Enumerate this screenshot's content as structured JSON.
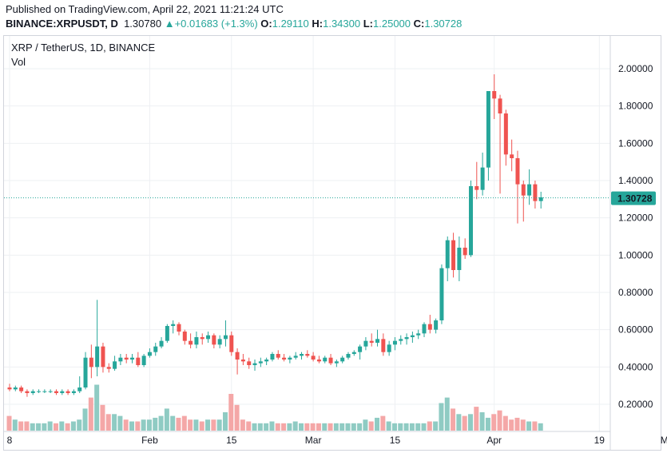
{
  "header": {
    "published": "Published on TradingView.com, April 22, 2021 11:21:24 UTC",
    "symbol": "BINANCE:XRPUSDT, D",
    "last": "1.30780",
    "arrow": "▲",
    "change": "+0.01683 (+1.3%)",
    "o_label": "O:",
    "o": "1.29110",
    "h_label": "H:",
    "h": "1.34300",
    "l_label": "L:",
    "l": "1.25000",
    "c_label": "C:",
    "c": "1.30728"
  },
  "legend": {
    "title": "XRP / TetherUS, 1D, BINANCE",
    "vol": "Vol"
  },
  "colors": {
    "up": "#26a69a",
    "down": "#ef5350",
    "vol_up": "#8fcbc3",
    "vol_down": "#f4a7a7",
    "grid": "#eef0f3",
    "axis": "#d1d4dc"
  },
  "chart_data": {
    "type": "candlestick",
    "title": "XRP / TetherUS, 1D, BINANCE",
    "last_price_label": "1.30728",
    "y_ticks": [
      "0.20000",
      "0.40000",
      "0.60000",
      "0.80000",
      "1.00000",
      "1.20000",
      "1.40000",
      "1.60000",
      "1.80000",
      "2.00000"
    ],
    "y_tick_values": [
      0.2,
      0.4,
      0.6,
      0.8,
      1.0,
      1.2,
      1.4,
      1.6,
      1.8,
      2.0
    ],
    "x_ticks": [
      {
        "label": "8",
        "index": 0
      },
      {
        "label": "Feb",
        "index": 24
      },
      {
        "label": "15",
        "index": 38
      },
      {
        "label": "Mar",
        "index": 52
      },
      {
        "label": "15",
        "index": 66
      },
      {
        "label": "Apr",
        "index": 83
      },
      {
        "label": "19",
        "index": 101
      },
      {
        "label": "May",
        "index": 113
      }
    ],
    "ylim": [
      0.11,
      2.14
    ],
    "candles": [
      [
        0.29,
        0.31,
        0.27,
        0.28
      ],
      [
        0.28,
        0.3,
        0.27,
        0.29
      ],
      [
        0.29,
        0.3,
        0.26,
        0.27
      ],
      [
        0.27,
        0.28,
        0.24,
        0.26
      ],
      [
        0.26,
        0.28,
        0.25,
        0.27
      ],
      [
        0.27,
        0.28,
        0.26,
        0.27
      ],
      [
        0.27,
        0.28,
        0.26,
        0.27
      ],
      [
        0.27,
        0.28,
        0.26,
        0.27
      ],
      [
        0.27,
        0.28,
        0.25,
        0.26
      ],
      [
        0.26,
        0.28,
        0.25,
        0.27
      ],
      [
        0.27,
        0.28,
        0.25,
        0.26
      ],
      [
        0.26,
        0.28,
        0.25,
        0.27
      ],
      [
        0.27,
        0.35,
        0.26,
        0.29
      ],
      [
        0.29,
        0.48,
        0.28,
        0.45
      ],
      [
        0.45,
        0.52,
        0.34,
        0.4
      ],
      [
        0.4,
        0.76,
        0.35,
        0.51
      ],
      [
        0.51,
        0.53,
        0.37,
        0.4
      ],
      [
        0.4,
        0.42,
        0.37,
        0.39
      ],
      [
        0.39,
        0.46,
        0.38,
        0.43
      ],
      [
        0.43,
        0.47,
        0.41,
        0.45
      ],
      [
        0.45,
        0.47,
        0.42,
        0.44
      ],
      [
        0.44,
        0.47,
        0.42,
        0.45
      ],
      [
        0.45,
        0.48,
        0.4,
        0.41
      ],
      [
        0.41,
        0.47,
        0.4,
        0.46
      ],
      [
        0.46,
        0.5,
        0.45,
        0.48
      ],
      [
        0.48,
        0.53,
        0.46,
        0.51
      ],
      [
        0.51,
        0.56,
        0.5,
        0.54
      ],
      [
        0.54,
        0.63,
        0.53,
        0.62
      ],
      [
        0.62,
        0.65,
        0.58,
        0.63
      ],
      [
        0.63,
        0.64,
        0.57,
        0.59
      ],
      [
        0.59,
        0.6,
        0.52,
        0.54
      ],
      [
        0.54,
        0.58,
        0.5,
        0.52
      ],
      [
        0.52,
        0.59,
        0.5,
        0.56
      ],
      [
        0.56,
        0.58,
        0.52,
        0.55
      ],
      [
        0.55,
        0.59,
        0.53,
        0.57
      ],
      [
        0.57,
        0.58,
        0.5,
        0.52
      ],
      [
        0.52,
        0.57,
        0.5,
        0.55
      ],
      [
        0.55,
        0.65,
        0.51,
        0.57
      ],
      [
        0.57,
        0.59,
        0.46,
        0.48
      ],
      [
        0.48,
        0.5,
        0.36,
        0.44
      ],
      [
        0.44,
        0.47,
        0.41,
        0.43
      ],
      [
        0.43,
        0.45,
        0.39,
        0.41
      ],
      [
        0.41,
        0.44,
        0.38,
        0.42
      ],
      [
        0.42,
        0.45,
        0.4,
        0.43
      ],
      [
        0.43,
        0.45,
        0.41,
        0.44
      ],
      [
        0.44,
        0.48,
        0.43,
        0.47
      ],
      [
        0.47,
        0.49,
        0.44,
        0.45
      ],
      [
        0.45,
        0.47,
        0.43,
        0.44
      ],
      [
        0.44,
        0.46,
        0.42,
        0.45
      ],
      [
        0.45,
        0.48,
        0.44,
        0.46
      ],
      [
        0.46,
        0.48,
        0.44,
        0.47
      ],
      [
        0.47,
        0.49,
        0.45,
        0.46
      ],
      [
        0.46,
        0.48,
        0.43,
        0.44
      ],
      [
        0.44,
        0.46,
        0.42,
        0.43
      ],
      [
        0.43,
        0.46,
        0.42,
        0.45
      ],
      [
        0.45,
        0.47,
        0.41,
        0.42
      ],
      [
        0.42,
        0.44,
        0.4,
        0.43
      ],
      [
        0.43,
        0.46,
        0.42,
        0.45
      ],
      [
        0.45,
        0.48,
        0.44,
        0.47
      ],
      [
        0.47,
        0.49,
        0.46,
        0.48
      ],
      [
        0.48,
        0.52,
        0.44,
        0.51
      ],
      [
        0.51,
        0.56,
        0.49,
        0.54
      ],
      [
        0.54,
        0.58,
        0.51,
        0.53
      ],
      [
        0.53,
        0.6,
        0.51,
        0.55
      ],
      [
        0.55,
        0.58,
        0.46,
        0.48
      ],
      [
        0.48,
        0.54,
        0.46,
        0.52
      ],
      [
        0.52,
        0.56,
        0.49,
        0.54
      ],
      [
        0.54,
        0.57,
        0.52,
        0.55
      ],
      [
        0.55,
        0.58,
        0.52,
        0.56
      ],
      [
        0.56,
        0.59,
        0.53,
        0.57
      ],
      [
        0.57,
        0.6,
        0.55,
        0.58
      ],
      [
        0.58,
        0.64,
        0.56,
        0.63
      ],
      [
        0.63,
        0.68,
        0.58,
        0.6
      ],
      [
        0.6,
        0.66,
        0.58,
        0.65
      ],
      [
        0.65,
        0.95,
        0.63,
        0.93
      ],
      [
        0.93,
        1.1,
        0.86,
        1.08
      ],
      [
        1.08,
        1.12,
        0.88,
        0.92
      ],
      [
        0.92,
        1.1,
        0.86,
        1.04
      ],
      [
        1.04,
        1.09,
        0.98,
        1.0
      ],
      [
        1.0,
        1.4,
        0.99,
        1.37
      ],
      [
        1.37,
        1.5,
        1.3,
        1.35
      ],
      [
        1.35,
        1.55,
        1.32,
        1.47
      ],
      [
        1.47,
        1.88,
        1.4,
        1.88
      ],
      [
        1.88,
        1.97,
        1.73,
        1.84
      ],
      [
        1.84,
        1.86,
        1.33,
        1.76
      ],
      [
        1.76,
        1.78,
        1.48,
        1.54
      ],
      [
        1.54,
        1.62,
        1.45,
        1.52
      ],
      [
        1.52,
        1.56,
        1.17,
        1.38
      ],
      [
        1.38,
        1.4,
        1.18,
        1.32
      ],
      [
        1.32,
        1.46,
        1.27,
        1.38
      ],
      [
        1.38,
        1.4,
        1.25,
        1.29
      ],
      [
        1.29,
        1.34,
        1.25,
        1.31
      ]
    ],
    "volumes": [
      0.08,
      0.06,
      0.05,
      0.05,
      0.04,
      0.04,
      0.04,
      0.05,
      0.04,
      0.05,
      0.04,
      0.05,
      0.06,
      0.12,
      0.18,
      0.25,
      0.14,
      0.09,
      0.09,
      0.08,
      0.06,
      0.05,
      0.05,
      0.06,
      0.06,
      0.07,
      0.08,
      0.12,
      0.08,
      0.07,
      0.08,
      0.06,
      0.06,
      0.05,
      0.06,
      0.06,
      0.06,
      0.1,
      0.2,
      0.14,
      0.06,
      0.05,
      0.04,
      0.04,
      0.04,
      0.05,
      0.04,
      0.04,
      0.04,
      0.05,
      0.04,
      0.04,
      0.04,
      0.04,
      0.04,
      0.04,
      0.04,
      0.04,
      0.04,
      0.04,
      0.04,
      0.06,
      0.05,
      0.07,
      0.08,
      0.05,
      0.04,
      0.04,
      0.04,
      0.04,
      0.04,
      0.04,
      0.05,
      0.05,
      0.15,
      0.18,
      0.12,
      0.09,
      0.08,
      0.09,
      0.13,
      0.1,
      0.07,
      0.09,
      0.11,
      0.08,
      0.06,
      0.07,
      0.06,
      0.05,
      0.05,
      0.04
    ]
  }
}
